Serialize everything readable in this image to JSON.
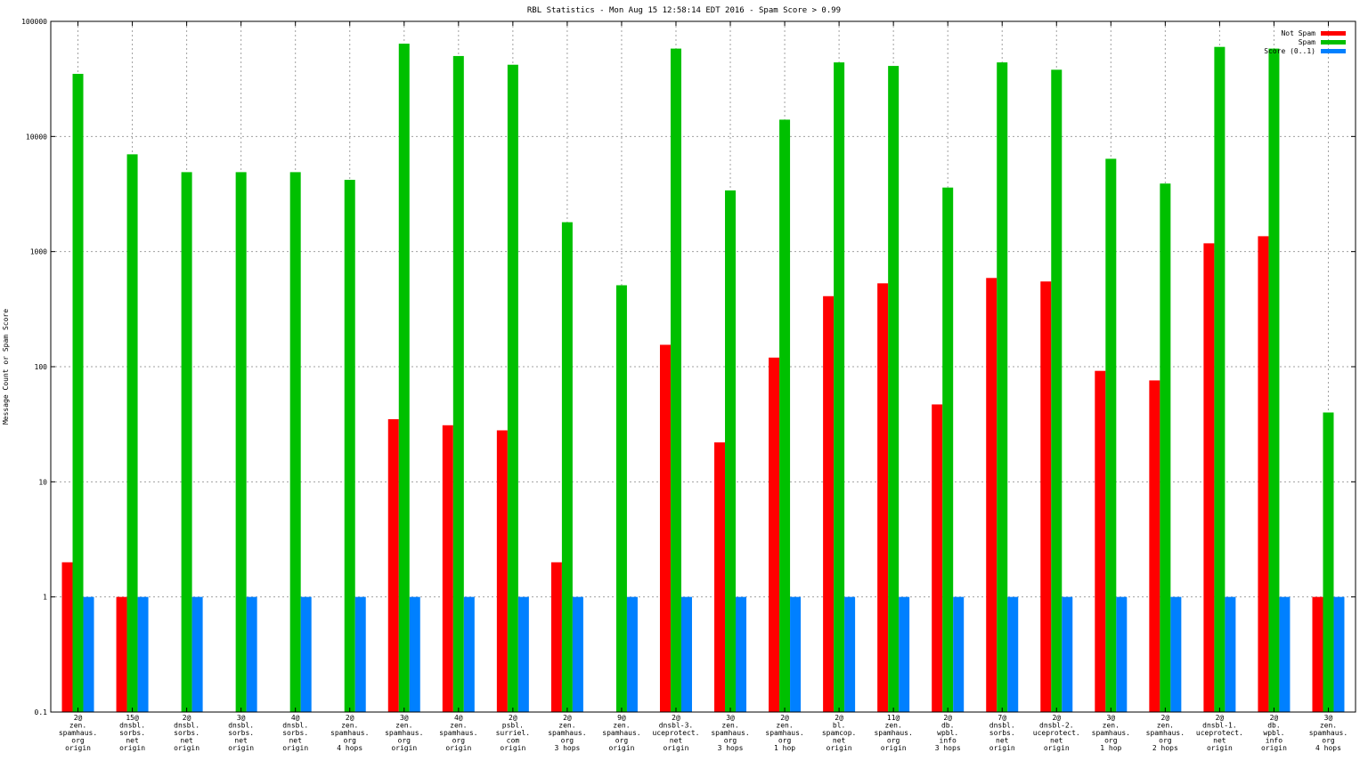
{
  "chart_data": {
    "type": "bar",
    "title": "RBL Statistics - Mon Aug 15 12:58:14 EDT 2016 - Spam Score > 0.99",
    "xlabel": "",
    "ylabel": "Message Count or Spam Score",
    "yscale": "log",
    "ylim": [
      0.1,
      100000
    ],
    "yticks": [
      "0.1",
      "1",
      "10",
      "100",
      "1000",
      "10000",
      "100000"
    ],
    "grid": true,
    "legend_position": "top-right",
    "categories": [
      [
        "2@",
        "zen.",
        "spamhaus.",
        "org",
        "origin"
      ],
      [
        "15@",
        "dnsbl.",
        "sorbs.",
        "net",
        "origin"
      ],
      [
        "2@",
        "dnsbl.",
        "sorbs.",
        "net",
        "origin"
      ],
      [
        "3@",
        "dnsbl.",
        "sorbs.",
        "net",
        "origin"
      ],
      [
        "4@",
        "dnsbl.",
        "sorbs.",
        "net",
        "origin"
      ],
      [
        "2@",
        "zen.",
        "spamhaus.",
        "org",
        "4 hops"
      ],
      [
        "3@",
        "zen.",
        "spamhaus.",
        "org",
        "origin"
      ],
      [
        "4@",
        "zen.",
        "spamhaus.",
        "org",
        "origin"
      ],
      [
        "2@",
        "psbl.",
        "surriel.",
        "com",
        "origin"
      ],
      [
        "2@",
        "zen.",
        "spamhaus.",
        "org",
        "3 hops"
      ],
      [
        "9@",
        "zen.",
        "spamhaus.",
        "org",
        "origin"
      ],
      [
        "2@",
        "dnsbl-3.",
        "uceprotect.",
        "net",
        "origin"
      ],
      [
        "3@",
        "zen.",
        "spamhaus.",
        "org",
        "3 hops"
      ],
      [
        "2@",
        "zen.",
        "spamhaus.",
        "org",
        "1 hop"
      ],
      [
        "2@",
        "bl.",
        "spamcop.",
        "net",
        "origin"
      ],
      [
        "11@",
        "zen.",
        "spamhaus.",
        "org",
        "origin"
      ],
      [
        "2@",
        "db.",
        "wpbl.",
        "info",
        "3 hops"
      ],
      [
        "7@",
        "dnsbl.",
        "sorbs.",
        "net",
        "origin"
      ],
      [
        "2@",
        "dnsbl-2.",
        "uceprotect.",
        "net",
        "origin"
      ],
      [
        "3@",
        "zen.",
        "spamhaus.",
        "org",
        "1 hop"
      ],
      [
        "2@",
        "zen.",
        "spamhaus.",
        "org",
        "2 hops"
      ],
      [
        "2@",
        "dnsbl-1.",
        "uceprotect.",
        "net",
        "origin"
      ],
      [
        "2@",
        "db.",
        "wpbl.",
        "info",
        "origin"
      ],
      [
        "3@",
        "zen.",
        "spamhaus.",
        "org",
        "4 hops"
      ]
    ],
    "series": [
      {
        "name": "Not Spam",
        "color": "#ff0000",
        "values": [
          2,
          1,
          null,
          null,
          null,
          null,
          35,
          31,
          28,
          2,
          null,
          155,
          22,
          120,
          410,
          530,
          47,
          590,
          550,
          92,
          76,
          1180,
          1360,
          1
        ]
      },
      {
        "name": "Spam",
        "color": "#00c000",
        "values": [
          35000,
          7000,
          4900,
          4900,
          4900,
          4200,
          64000,
          50000,
          42000,
          1800,
          510,
          58000,
          3400,
          14000,
          44000,
          41000,
          3600,
          44000,
          38000,
          6400,
          3900,
          60000,
          58000,
          40
        ]
      },
      {
        "name": "Score (0..1)",
        "color": "#0080ff",
        "values": [
          1,
          1,
          1,
          1,
          1,
          1,
          1,
          1,
          1,
          1,
          1,
          1,
          1,
          1,
          1,
          1,
          1,
          1,
          1,
          1,
          1,
          1,
          1,
          1
        ]
      }
    ]
  }
}
